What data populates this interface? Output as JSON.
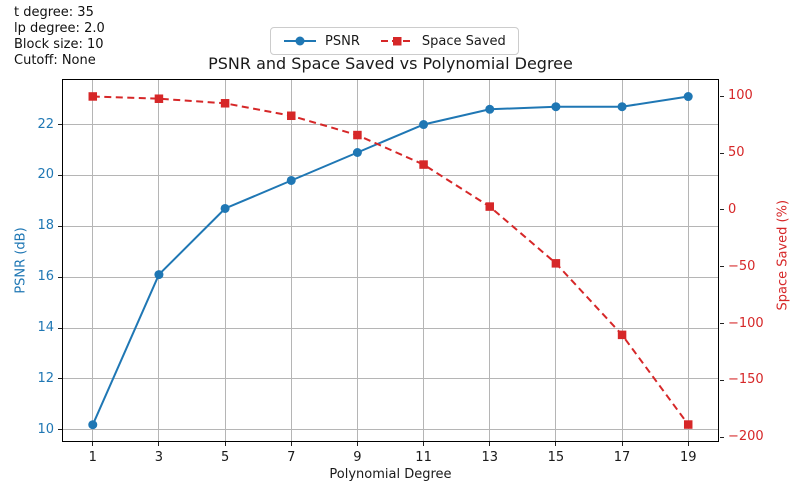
{
  "annotations": {
    "lines": [
      "t degree: 35",
      "lp degree: 2.0",
      "Block size: 10",
      "Cutoff: None"
    ]
  },
  "colors": {
    "blue": "#1f77b4",
    "red": "#d62728",
    "grid": "#b5b5b5",
    "spine": "#000000",
    "text": "#1a1a1a"
  },
  "chart_data": {
    "type": "line",
    "title": "PSNR and Space Saved vs Polynomial Degree",
    "xlabel": "Polynomial Degree",
    "ylabel_left": "PSNR (dB)",
    "ylabel_right": "Space Saved (%)",
    "grid": true,
    "legend_position": "top-center",
    "x": [
      1,
      3,
      5,
      7,
      9,
      11,
      13,
      15,
      17,
      19
    ],
    "x_ticks": [
      1,
      3,
      5,
      7,
      9,
      11,
      13,
      15,
      17,
      19
    ],
    "xlim": [
      0.1,
      19.9
    ],
    "axes": {
      "left": {
        "label": "PSNR (dB)",
        "ticks": [
          10,
          12,
          14,
          16,
          18,
          20,
          22
        ],
        "lim": [
          9.56,
          23.75
        ],
        "tick_color": "#1f77b4"
      },
      "right": {
        "label": "Space Saved (%)",
        "ticks": [
          100,
          50,
          0,
          -50,
          -100,
          -150,
          -200
        ],
        "lim": [
          -203.5,
          114.5
        ],
        "tick_color": "#d62728"
      }
    },
    "series": [
      {
        "name": "PSNR",
        "axis": "left",
        "color": "#1f77b4",
        "line_style": "solid",
        "marker": "circle",
        "values": [
          10.2,
          16.1,
          18.7,
          19.8,
          20.9,
          22.0,
          22.6,
          22.7,
          22.7,
          23.1
        ]
      },
      {
        "name": "Space Saved",
        "axis": "right",
        "color": "#d62728",
        "line_style": "dashed",
        "marker": "square",
        "values": [
          100,
          98,
          94,
          83,
          66,
          40,
          3,
          -47,
          -110,
          -189
        ]
      }
    ]
  }
}
